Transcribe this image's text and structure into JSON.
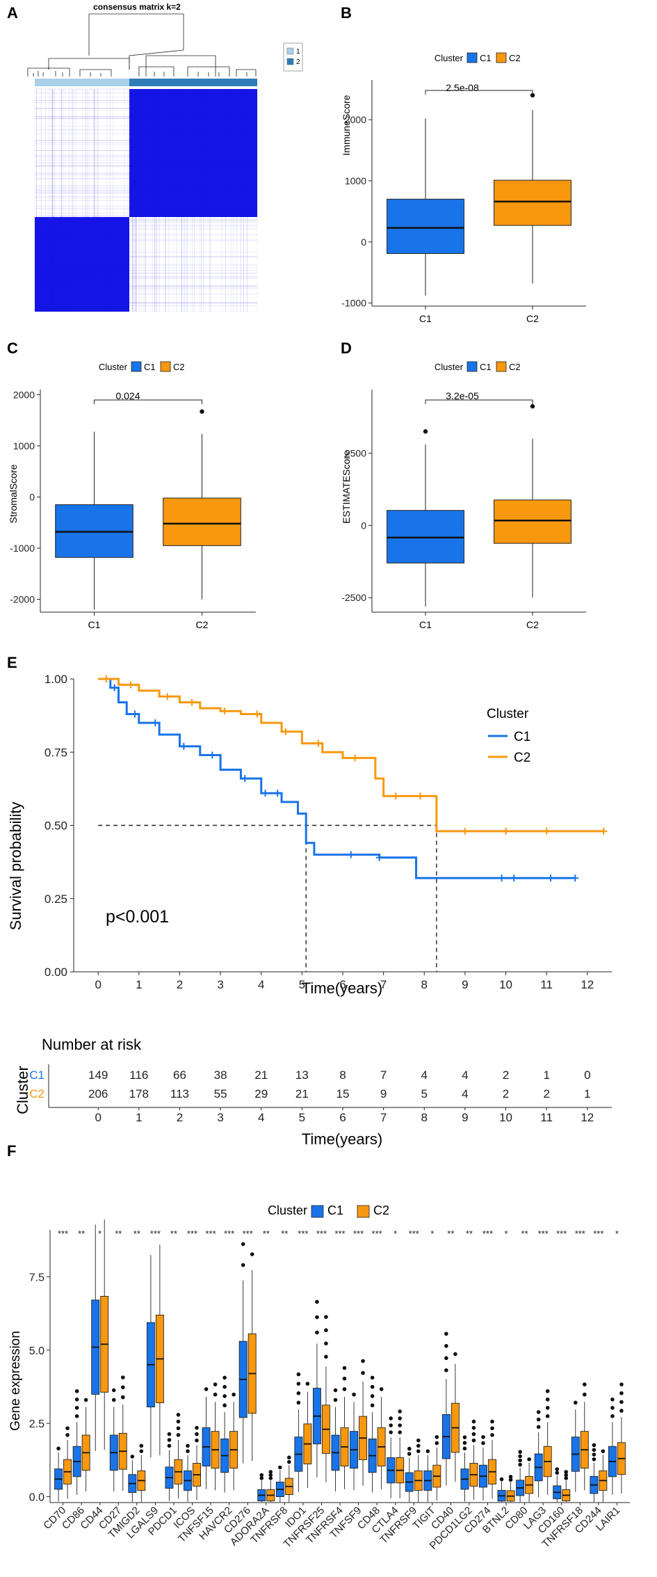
{
  "colors": {
    "c1": "#1874E8",
    "c2": "#F8980F",
    "dark_blue": "#1515E6",
    "light_blue": "#A9CFE9",
    "mid_blue": "#2F7DB6"
  },
  "panel_a": {
    "letter": "A",
    "chart_data": {
      "type": "heatmap",
      "title": "consensus matrix k=2",
      "legend": [
        "1",
        "2"
      ],
      "blocks": [
        {
          "rows": "cluster 2",
          "cols": "cluster 2",
          "value": "high"
        },
        {
          "rows": "cluster 1",
          "cols": "cluster 1",
          "value": "high"
        },
        {
          "rows": "cluster 1",
          "cols": "cluster 2",
          "value": "low"
        },
        {
          "rows": "cluster 2",
          "cols": "cluster 1",
          "value": "low"
        }
      ]
    }
  },
  "panel_b": {
    "letter": "B",
    "legend_title": "Cluster",
    "legend_labels": [
      "C1",
      "C2"
    ],
    "chart_data": {
      "type": "box",
      "ylabel": "ImmuneScore",
      "categories": [
        "C1",
        "C2"
      ],
      "ylim": [
        -1050,
        2650
      ],
      "yticks": [
        -1000,
        0,
        1000,
        2000
      ],
      "ytick_labels": [
        "-1000",
        "0",
        "1000",
        "2000"
      ],
      "pvalue": "2.5e-08",
      "boxes": [
        {
          "name": "C1",
          "min": -880,
          "q1": -190,
          "median": 230,
          "q3": 700,
          "max": 2020,
          "outliers": []
        },
        {
          "name": "C2",
          "min": -680,
          "q1": 270,
          "median": 660,
          "q3": 1010,
          "max": 2160,
          "outliers": [
            2400
          ]
        }
      ]
    }
  },
  "panel_c": {
    "letter": "C",
    "legend_title": "Cluster",
    "legend_labels": [
      "C1",
      "C2"
    ],
    "chart_data": {
      "type": "box",
      "ylabel": "StromalScore",
      "categories": [
        "C1",
        "C2"
      ],
      "ylim": [
        -2250,
        2100
      ],
      "yticks": [
        -2000,
        -1000,
        0,
        1000,
        2000
      ],
      "ytick_labels": [
        "-2000",
        "-1000",
        "0",
        "1000",
        "2000"
      ],
      "pvalue": "0.024",
      "boxes": [
        {
          "name": "C1",
          "min": -2200,
          "q1": -1180,
          "median": -680,
          "q3": -150,
          "max": 1280,
          "outliers": []
        },
        {
          "name": "C2",
          "min": -2000,
          "q1": -950,
          "median": -520,
          "q3": -20,
          "max": 1230,
          "outliers": [
            1670
          ]
        }
      ]
    }
  },
  "panel_d": {
    "letter": "D",
    "legend_title": "Cluster",
    "legend_labels": [
      "C1",
      "C2"
    ],
    "chart_data": {
      "type": "box",
      "ylabel": "ESTIMATEScore",
      "categories": [
        "C1",
        "C2"
      ],
      "ylim": [
        -3000,
        4700
      ],
      "yticks": [
        -2500,
        0,
        2500
      ],
      "ytick_labels": [
        "-2500",
        "0",
        "2500"
      ],
      "pvalue": "3.2e-05",
      "boxes": [
        {
          "name": "C1",
          "min": -2800,
          "q1": -1300,
          "median": -420,
          "q3": 520,
          "max": 2800,
          "outliers": [
            3250
          ]
        },
        {
          "name": "C2",
          "min": -2500,
          "q1": -620,
          "median": 170,
          "q3": 880,
          "max": 3000,
          "outliers": [
            4120
          ]
        }
      ]
    }
  },
  "panel_e": {
    "letter": "E",
    "legend_title": "Cluster",
    "legend_labels": [
      "C1",
      "C2"
    ],
    "pvalue_text": "p<0.001",
    "chart_data": {
      "type": "line",
      "xlabel": "Time(years)",
      "ylabel": "Survival probability",
      "xlim": [
        -0.6,
        12.6
      ],
      "ylim": [
        0,
        1
      ],
      "xticks": [
        0,
        1,
        2,
        3,
        4,
        5,
        6,
        7,
        8,
        9,
        10,
        11,
        12
      ],
      "xtick_labels": [
        "0",
        "1",
        "2",
        "3",
        "4",
        "5",
        "6",
        "7",
        "8",
        "9",
        "10",
        "11",
        "12"
      ],
      "yticks": [
        0,
        0.25,
        0.5,
        0.75,
        1
      ],
      "ytick_labels": [
        "0.00",
        "0.25",
        "0.50",
        "0.75",
        "1.00"
      ],
      "median_survival": [
        5.1,
        8.3
      ],
      "series": [
        {
          "name": "C1",
          "x": [
            0,
            0.3,
            0.5,
            0.7,
            1,
            1.5,
            2,
            2.5,
            3,
            3.5,
            4,
            4.5,
            4.9,
            5.1,
            5.3,
            6,
            6.9,
            7.8,
            10,
            11.7
          ],
          "y": [
            1,
            0.97,
            0.92,
            0.88,
            0.85,
            0.81,
            0.77,
            0.74,
            0.69,
            0.66,
            0.61,
            0.58,
            0.54,
            0.44,
            0.4,
            0.4,
            0.39,
            0.32,
            0.32,
            0.32
          ],
          "censor_x": [
            0.4,
            0.9,
            1.4,
            2.1,
            2.8,
            3.6,
            4.1,
            4.4,
            6.2,
            6.9,
            9.9,
            10.2,
            11.1,
            11.7
          ]
        },
        {
          "name": "C2",
          "x": [
            0,
            0.5,
            1,
            1.5,
            2,
            2.5,
            3,
            3.5,
            4,
            4.5,
            5,
            5.5,
            6,
            6.8,
            7,
            7.5,
            8.3,
            9,
            12.4
          ],
          "y": [
            1,
            0.98,
            0.96,
            0.94,
            0.92,
            0.9,
            0.89,
            0.88,
            0.85,
            0.82,
            0.78,
            0.75,
            0.73,
            0.66,
            0.6,
            0.6,
            0.48,
            0.48,
            0.48
          ],
          "censor_x": [
            0.2,
            0.8,
            1.7,
            2.3,
            3.1,
            3.9,
            4.6,
            5.4,
            6.3,
            7.3,
            7.9,
            9.0,
            10.0,
            11.0,
            12.4
          ]
        }
      ]
    }
  },
  "risk_table": {
    "title": "Number at risk",
    "ylabel": "Cluster",
    "xlabel": "Time(years)",
    "xtick_labels": [
      "0",
      "1",
      "2",
      "3",
      "4",
      "5",
      "6",
      "7",
      "8",
      "9",
      "10",
      "11",
      "12"
    ],
    "rows": [
      {
        "name": "C1",
        "values": [
          "149",
          "116",
          "66",
          "38",
          "21",
          "13",
          "8",
          "7",
          "4",
          "4",
          "2",
          "1",
          "0"
        ]
      },
      {
        "name": "C2",
        "values": [
          "206",
          "178",
          "113",
          "55",
          "29",
          "21",
          "15",
          "9",
          "5",
          "4",
          "2",
          "2",
          "1"
        ]
      }
    ]
  },
  "panel_f": {
    "letter": "F",
    "legend_title": "Cluster",
    "legend_labels": [
      "C1",
      "C2"
    ],
    "chart_data": {
      "type": "box",
      "ylabel": "Gene expression",
      "ylim": [
        -0.2,
        9.1
      ],
      "yticks": [
        0,
        2.5,
        5,
        7.5
      ],
      "ytick_labels": [
        "0.0",
        "2.5",
        "5.0",
        "7.5"
      ],
      "categories": [
        "CD70",
        "CD86",
        "CD44",
        "CD27",
        "TMIGD2",
        "LGALS9",
        "PDCD1",
        "ICOS",
        "TNFSF15",
        "HAVCR2",
        "CD276",
        "ADORA2A",
        "TNFRSF8",
        "IDO1",
        "TNFRSF25",
        "TNFRSF4",
        "TNFSF9",
        "CD48",
        "CTLA4",
        "TNFRSF9",
        "TIGIT",
        "CD40",
        "PDCD1LG2",
        "CD274",
        "BTNL2",
        "CD80",
        "LAG3",
        "CD160",
        "TNFRSF18",
        "CD244",
        "LAIR1"
      ],
      "significance": [
        "***",
        "**",
        "*",
        "**",
        "**",
        "***",
        "**",
        "***",
        "***",
        "***",
        "***",
        "**",
        "**",
        "***",
        "***",
        "***",
        "***",
        "***",
        "*",
        "***",
        "*",
        "**",
        "**",
        "***",
        "*",
        "**",
        "***",
        "***",
        "***",
        "***",
        "*"
      ],
      "c1_medians": [
        0.6,
        1.2,
        5.1,
        1.5,
        0.45,
        4.5,
        0.65,
        0.55,
        1.7,
        1.4,
        4.0,
        0.05,
        0.25,
        1.45,
        2.75,
        1.5,
        1.6,
        1.4,
        0.9,
        0.5,
        0.55,
        2.05,
        0.6,
        0.7,
        0.03,
        0.3,
        1.0,
        0.15,
        1.45,
        0.4,
        1.2
      ],
      "c2_medians": [
        0.85,
        1.5,
        5.2,
        1.55,
        0.55,
        4.7,
        0.85,
        0.75,
        1.6,
        1.6,
        4.2,
        0.05,
        0.35,
        1.8,
        2.3,
        1.7,
        2.0,
        1.7,
        0.9,
        0.55,
        0.7,
        2.35,
        0.75,
        0.85,
        0.02,
        0.4,
        1.2,
        0.05,
        1.6,
        0.55,
        1.3
      ]
    }
  }
}
